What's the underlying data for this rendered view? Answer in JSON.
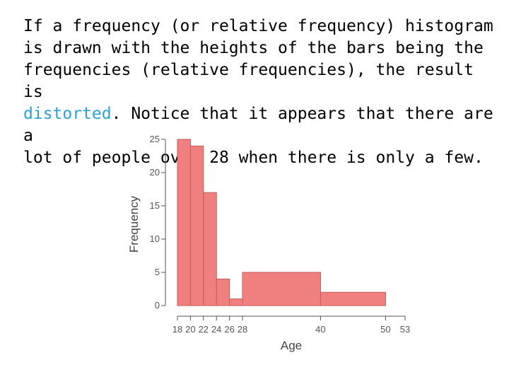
{
  "slide": {
    "text_before": "If a frequency (or relative frequency) histogram\nis drawn with the heights of the bars being the\nfrequencies (relative frequencies), the result is\n",
    "highlight": "distorted",
    "text_after": ". Notice that it appears that there are a\nlot of people over 28 when there is only a few.",
    "highlight_color": "#29a3d4"
  },
  "chart_data": {
    "type": "bar",
    "xlabel": "Age",
    "ylabel": "Frequency",
    "bins": [
      {
        "from": 18,
        "to": 20,
        "value": 25
      },
      {
        "from": 20,
        "to": 22,
        "value": 24
      },
      {
        "from": 22,
        "to": 24,
        "value": 17
      },
      {
        "from": 24,
        "to": 26,
        "value": 4
      },
      {
        "from": 26,
        "to": 28,
        "value": 1
      },
      {
        "from": 28,
        "to": 40,
        "value": 5
      },
      {
        "from": 40,
        "to": 50,
        "value": 2
      },
      {
        "from": 50,
        "to": 53,
        "value": 0
      }
    ],
    "x_ticks": [
      18,
      20,
      22,
      24,
      26,
      28,
      40,
      50,
      53
    ],
    "y_ticks": [
      0,
      5,
      10,
      15,
      20,
      25
    ],
    "xlim": [
      18,
      53
    ],
    "ylim": [
      0,
      25
    ],
    "bar_color": "#f08080",
    "bar_edge_color": "#c45a5a",
    "grid": false
  }
}
